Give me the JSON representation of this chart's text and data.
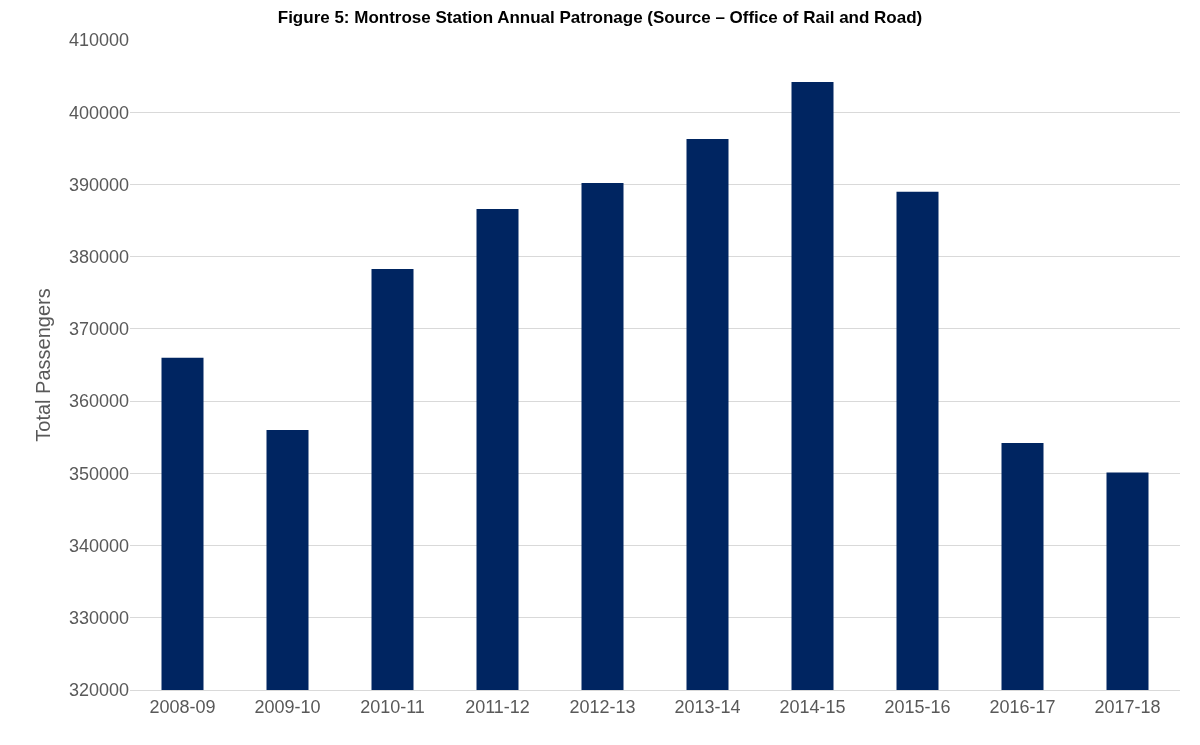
{
  "chart_data": {
    "type": "bar",
    "title": "Figure 5: Montrose Station Annual Patronage (Source – Office of Rail and Road)",
    "ylabel": "Total Passengers",
    "categories": [
      "2008-09",
      "2009-10",
      "2010-11",
      "2011-12",
      "2012-13",
      "2013-14",
      "2014-15",
      "2015-16",
      "2016-17",
      "2017-18"
    ],
    "values": [
      366000,
      356000,
      378300,
      386600,
      390200,
      396300,
      404200,
      389000,
      354200,
      350100
    ],
    "color": "#002561",
    "ylim": [
      320000,
      410000
    ],
    "yticks": [
      320000,
      330000,
      340000,
      350000,
      360000,
      370000,
      380000,
      390000,
      400000,
      410000
    ],
    "grid": "y"
  }
}
